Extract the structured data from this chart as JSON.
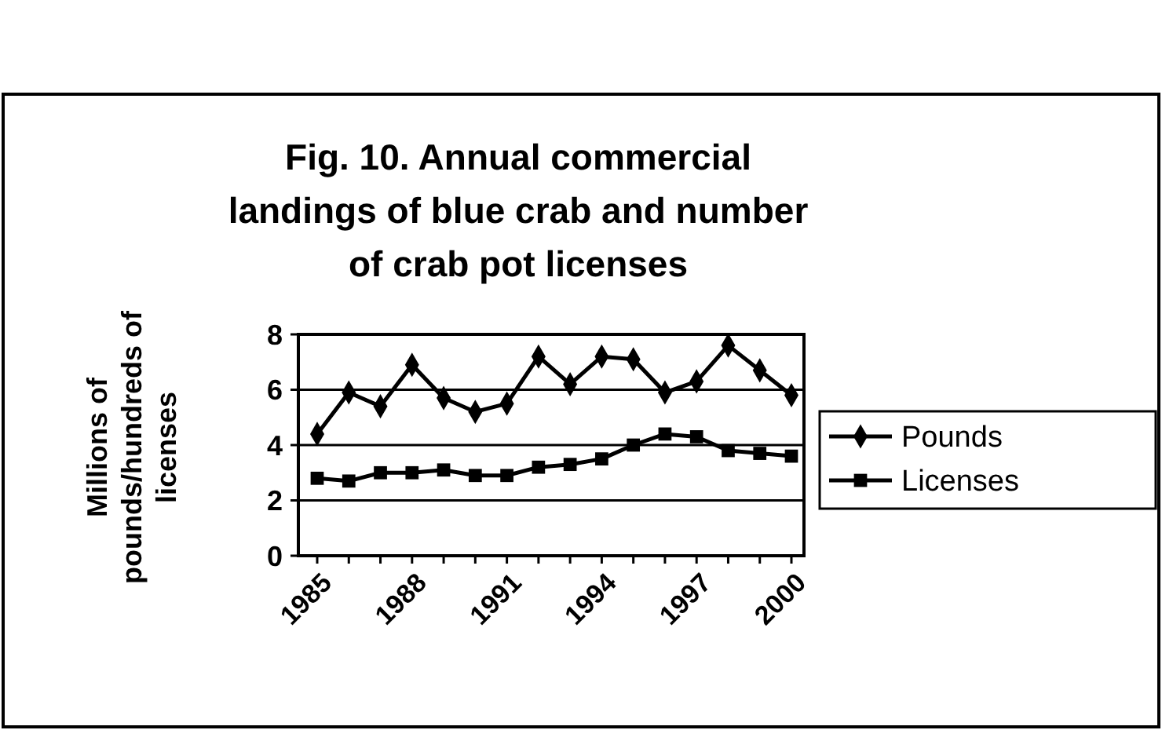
{
  "chart_data": {
    "type": "line",
    "title": "Fig. 10.  Annual commercial landings of blue crab and number of crab pot licenses",
    "ylabel": "Millions of pounds/hundreds of licenses",
    "categories": [
      "1985",
      null,
      null,
      "1988",
      null,
      null,
      "1991",
      null,
      null,
      "1994",
      null,
      null,
      "1997",
      null,
      null,
      "2000"
    ],
    "series": [
      {
        "name": "Pounds",
        "color": "#000000",
        "marker": "diamond",
        "values": [
          4.4,
          5.9,
          5.4,
          6.9,
          5.7,
          5.2,
          5.5,
          7.2,
          6.2,
          7.2,
          7.1,
          5.9,
          6.3,
          7.6,
          6.7,
          5.8
        ]
      },
      {
        "name": "Licenses",
        "color": "#000000",
        "marker": "square",
        "values": [
          2.8,
          2.7,
          3.0,
          3.0,
          3.1,
          2.9,
          2.9,
          3.2,
          3.3,
          3.5,
          4.0,
          4.4,
          4.3,
          3.8,
          3.7,
          3.6
        ]
      }
    ],
    "ylim": [
      0,
      8
    ],
    "yticks": [
      0,
      2,
      4,
      6,
      8
    ],
    "grid": "y",
    "legend": "right"
  }
}
